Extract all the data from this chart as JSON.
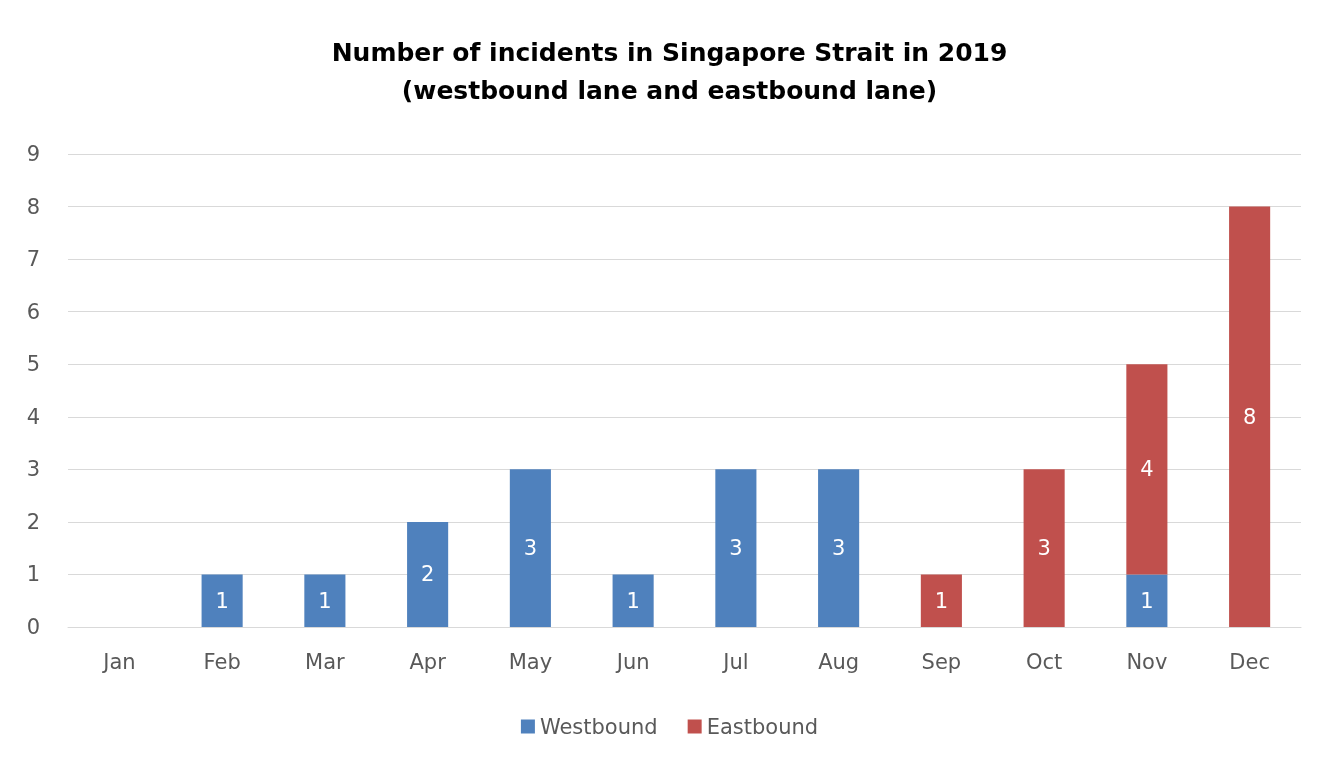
{
  "chart_data": {
    "type": "bar",
    "title": "Number of incidents in Singapore Strait in 2019\n(westbound lane and eastbound lane)",
    "categories": [
      "Jan",
      "Feb",
      "Mar",
      "Apr",
      "May",
      "Jun",
      "Jul",
      "Aug",
      "Sep",
      "Oct",
      "Nov",
      "Dec"
    ],
    "stacked": true,
    "series": [
      {
        "name": "Westbound",
        "color": "#4f81bd",
        "values": [
          null,
          1,
          1,
          2,
          3,
          1,
          3,
          3,
          null,
          null,
          1,
          null
        ]
      },
      {
        "name": "Eastbound",
        "color": "#c0504d",
        "values": [
          null,
          null,
          null,
          null,
          null,
          null,
          null,
          null,
          1,
          3,
          4,
          8
        ]
      }
    ],
    "ylim": [
      0,
      9
    ],
    "yticks": [
      0,
      1,
      2,
      3,
      4,
      5,
      6,
      7,
      8,
      9
    ],
    "grid": "y",
    "legend": "bottom",
    "data_labels": true
  }
}
